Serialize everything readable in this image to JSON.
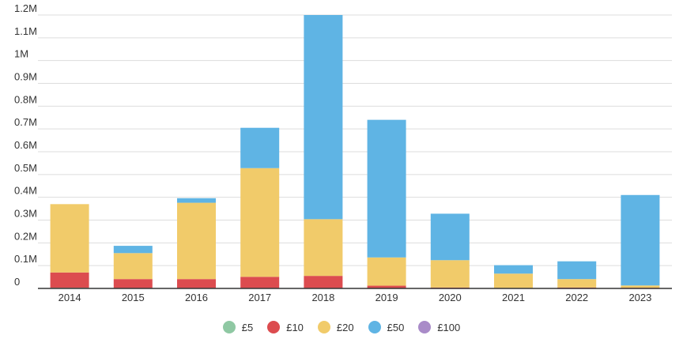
{
  "chart_data": {
    "type": "bar",
    "stacked": true,
    "categories": [
      "2014",
      "2015",
      "2016",
      "2017",
      "2018",
      "2019",
      "2020",
      "2021",
      "2022",
      "2023"
    ],
    "series": [
      {
        "name": "£5",
        "color": "#8fc8a3",
        "values": [
          3000,
          2000,
          2000,
          2000,
          2000,
          1000,
          1000,
          1000,
          1000,
          1000
        ]
      },
      {
        "name": "£10",
        "color": "#dc4c4f",
        "values": [
          67000,
          39000,
          39000,
          49000,
          53000,
          11000,
          3000,
          1000,
          3000,
          2000
        ]
      },
      {
        "name": "£20",
        "color": "#f1cb6a",
        "values": [
          300000,
          114000,
          335000,
          477000,
          249000,
          124000,
          120000,
          63000,
          37000,
          10000
        ]
      },
      {
        "name": "£50",
        "color": "#5fb4e4",
        "values": [
          0,
          32000,
          20000,
          177000,
          896000,
          604000,
          204000,
          37000,
          78000,
          397000
        ]
      },
      {
        "name": "£100",
        "color": "#a98bc8",
        "values": [
          0,
          0,
          0,
          0,
          0,
          0,
          0,
          0,
          0,
          0
        ]
      }
    ],
    "yticks": [
      0,
      100000,
      200000,
      300000,
      400000,
      500000,
      600000,
      700000,
      800000,
      900000,
      1000000,
      1100000,
      1200000
    ],
    "ytick_labels": [
      "0",
      "0.1M",
      "0.2M",
      "0.3M",
      "0.4M",
      "0.5M",
      "0.6M",
      "0.7M",
      "0.8M",
      "0.9M",
      "1M",
      "1.1M",
      "1.2M"
    ],
    "ylim": [
      0,
      1200000
    ],
    "grid": true,
    "legend_position": "bottom-center"
  }
}
